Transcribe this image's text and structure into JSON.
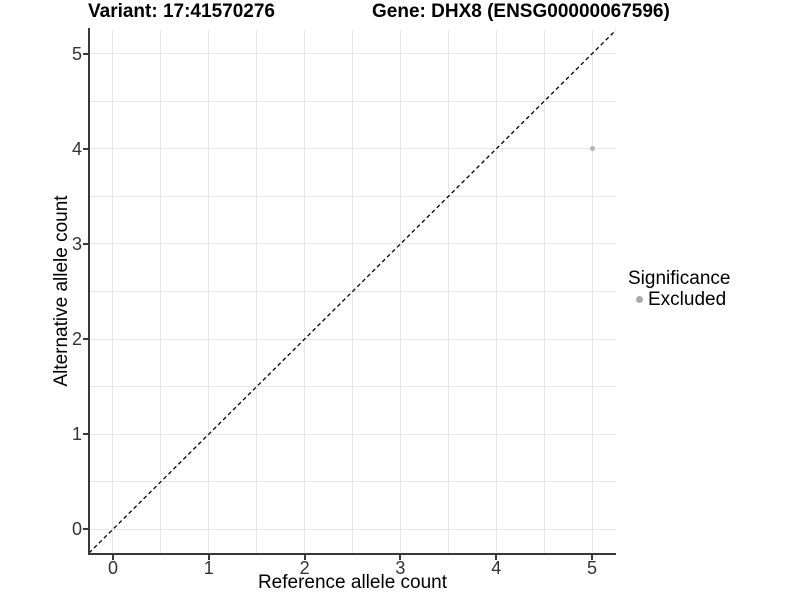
{
  "header": {
    "variant_title": "Variant: 17:41570276",
    "gene_title": "Gene: DHX8 (ENSG00000067596)"
  },
  "chart_data": {
    "type": "scatter",
    "xlabel": "Reference allele count",
    "ylabel": "Alternative allele count",
    "xlim": [
      -0.25,
      5.25
    ],
    "ylim": [
      -0.25,
      5.25
    ],
    "x_ticks": [
      0,
      1,
      2,
      3,
      4,
      5
    ],
    "y_ticks": [
      0,
      1,
      2,
      3,
      4,
      5
    ],
    "x_gridlines": [
      0,
      0.5,
      1,
      1.5,
      2,
      2.5,
      3,
      3.5,
      4,
      4.5,
      5
    ],
    "y_gridlines": [
      0,
      0.5,
      1,
      1.5,
      2,
      2.5,
      3,
      3.5,
      4,
      4.5,
      5
    ],
    "grid": true,
    "points": [
      {
        "x": 5,
        "y": 4,
        "significance": "Excluded"
      }
    ],
    "reference_line": {
      "kind": "identity",
      "from": [
        -0.25,
        -0.25
      ],
      "to": [
        5.25,
        5.25
      ],
      "style": "dashed",
      "color": "#000000"
    },
    "legend": {
      "position": "right",
      "title": "Significance",
      "entries": [
        {
          "label": "Excluded",
          "color": "#a9a9a9",
          "marker": "circle"
        }
      ]
    }
  },
  "colors": {
    "point": "#b3b3b3",
    "gridline": "#e6e6e6",
    "axis_line": "#383838",
    "tick_text": "#333333",
    "title_text": "#000000"
  }
}
